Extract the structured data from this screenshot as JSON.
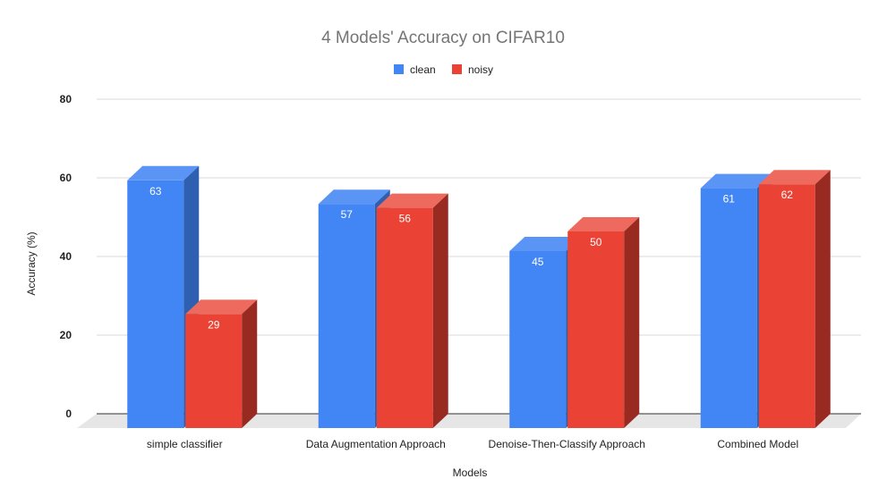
{
  "chart_data": {
    "type": "bar",
    "title": "4 Models' Accuracy on CIFAR10",
    "xlabel": "Models",
    "ylabel": "Accuracy (%)",
    "categories": [
      "simple classifier",
      "Data Augmentation Approach",
      "Denoise-Then-Classify Approach",
      "Combined Model"
    ],
    "series": [
      {
        "name": "clean",
        "color": "#4285f4",
        "side_color": "#2f5fb0",
        "top_color": "#5a95f5",
        "values": [
          63,
          57,
          45,
          61
        ]
      },
      {
        "name": "noisy",
        "color": "#ea4335",
        "side_color": "#992a22",
        "top_color": "#ee6a5e",
        "values": [
          29,
          56,
          50,
          62
        ]
      }
    ],
    "ylim": [
      0,
      80
    ],
    "yticks": [
      0,
      20,
      40,
      60,
      80
    ],
    "grid": true,
    "legend": "top-center",
    "style": "3d"
  }
}
